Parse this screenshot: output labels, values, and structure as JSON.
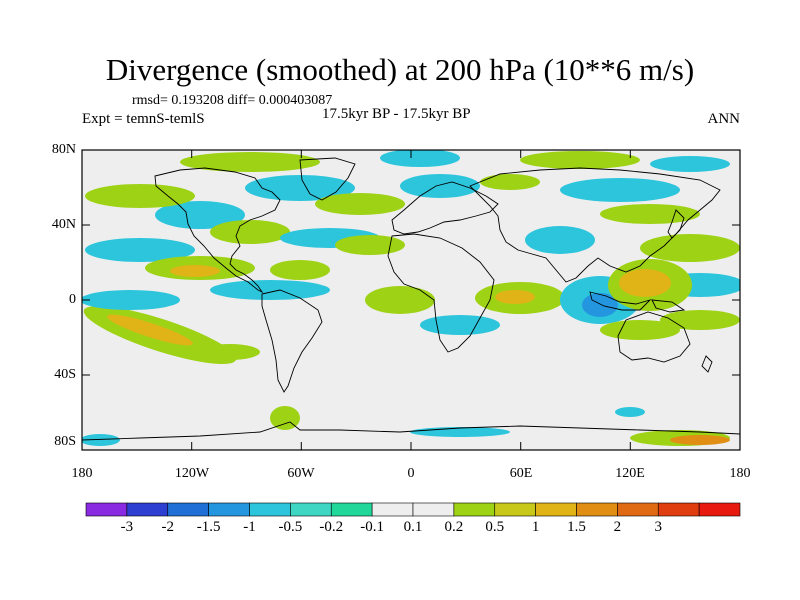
{
  "title": "Divergence (smoothed) at 200 hPa (10**6 m/s)",
  "stats": "rmsd= 0.193208 diff= 0.000403087",
  "subtitle_left": "Expt = temnS-temlS",
  "subtitle_center": "17.5kyr BP - 17.5kyr BP",
  "subtitle_right": "ANN",
  "lat_labels": [
    "80N",
    "40N",
    "0",
    "40S",
    "80S"
  ],
  "lon_labels": [
    "180",
    "120W",
    "60W",
    "0",
    "60E",
    "120E",
    "180"
  ],
  "colorbar": {
    "colors": [
      "#8a2be2",
      "#2d3fd0",
      "#1f6fd6",
      "#2496e0",
      "#2cc5dc",
      "#3fd6c3",
      "#21d89a",
      "#eeeeee",
      "#eeeeee",
      "#9ed214",
      "#c8c81a",
      "#e0b416",
      "#e08e14",
      "#e06a14",
      "#e03e10",
      "#e81a10"
    ],
    "labels": [
      "-3",
      "-2",
      "-1.5",
      "-1",
      "-0.5",
      "-0.2",
      "-0.1",
      "0.1",
      "0.2",
      "0.5",
      "1",
      "1.5",
      "2",
      "3"
    ]
  },
  "colors": {
    "background_field": "#eeeeee",
    "coastline": "#000000"
  }
}
